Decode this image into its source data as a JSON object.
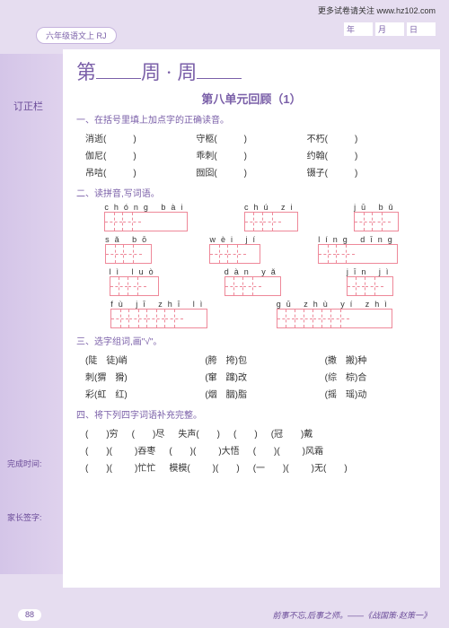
{
  "header": {
    "url": "更多试卷请关注 www.hz102.com",
    "date": {
      "y": "年",
      "m": "月",
      "d": "日"
    }
  },
  "tab": "六年级语文上 RJ",
  "sidebar": {
    "title": "订正栏",
    "done": "完成时间:",
    "sign": "家长签字:"
  },
  "title": {
    "a": "第",
    "b": "周 · 周"
  },
  "subtitle": "第八单元回顾（1）",
  "s1": {
    "t": "一、在括号里填上加点字的正确读音。",
    "r": [
      [
        "消逝(",
        "守柩(",
        "不朽("
      ],
      [
        "伽尼(",
        "乖刺(",
        "约翰("
      ],
      [
        "吊唁(",
        "囫囵(",
        "镊子("
      ]
    ]
  },
  "s2": {
    "t": "二、读拼音,写词语。",
    "groups": [
      [
        {
          "p": "chóng bài",
          "n": 2
        },
        {
          "p": "chú zi",
          "n": 2
        },
        {
          "p": "jū bǔ",
          "n": 2
        }
      ],
      [
        {
          "p": "sǎ bō",
          "n": 2
        },
        {
          "p": "wèi jí",
          "n": 2
        },
        {
          "p": "líng dīng",
          "n": 2
        }
      ],
      [
        {
          "p": "lì luò",
          "n": 2
        },
        {
          "p": "dàn yǎ",
          "n": 2
        },
        {
          "p": "jīn jì",
          "n": 2
        }
      ],
      [
        {
          "p": "fù jī zhī lì",
          "n": 4
        },
        {
          "p": "gū zhù yí zhì",
          "n": 4
        }
      ]
    ]
  },
  "s3": {
    "t": "三、选字组词,画\"√\"。",
    "r": [
      [
        "(陡　徒)峭",
        "(胯　挎)包",
        "(撒　搬)种"
      ],
      [
        "刺(猬　猾)",
        "(窜　蹿)改",
        "(综　棕)合"
      ],
      [
        "彩(虹　红)",
        "(烟　胭)脂",
        "(摇　瑶)动"
      ]
    ]
  },
  "s4": {
    "t": "四、将下列四字词语补充完整。",
    "r": [
      [
        "(　　)穷",
        "(　　)尽",
        "失声(　　)",
        "(　　)",
        "(冠　　)戴"
      ],
      [
        "(　　)(",
        "　)吞枣",
        "(　　)(",
        "　)大悟",
        "(　　)(",
        "　)风霜"
      ],
      [
        "(　　)(",
        "　)忙忙",
        "模模(",
        "　)(　　)",
        "(一　　)(",
        "　)无(　　)"
      ]
    ]
  },
  "footer": {
    "page": "88",
    "quote": "前事不忘,后事之师。——《战国策·赵策一》"
  }
}
